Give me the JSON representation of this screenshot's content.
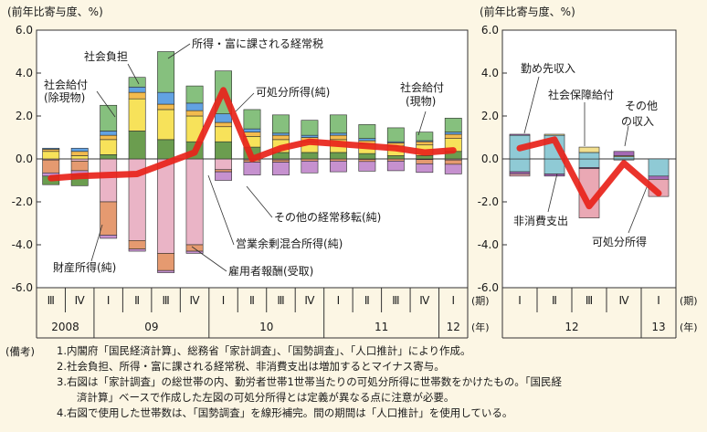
{
  "colors": {
    "page_bg": "#fcf6e4",
    "plot_bg": "#ffffff",
    "line": "#e8231a",
    "segments": {
      "employee_comp": "#eab4c6",
      "property_income": "#e59a70",
      "operating_surplus": "#c691cf",
      "other_transfers": "#6b9d4f",
      "social_benefits_nonkind": "#f7e25a",
      "social_benefits_kind": "#f3bb4e",
      "social_contributions": "#62a2e2",
      "income_tax": "#86c07e",
      "work_income": "#8fcad5",
      "social_security": "#f2df8e",
      "other_income": "#a469b4",
      "nonconsumption": "#eaa8b4"
    }
  },
  "chart_data": [
    {
      "type": "bar",
      "stacked": true,
      "unit_label": "(前年比寄与度、%)",
      "ylim": [
        -6.0,
        6.0
      ],
      "yticks": [
        "6.0",
        "4.0",
        "2.0",
        "0.0",
        "-2.0",
        "-4.0",
        "-6.0"
      ],
      "grid": false,
      "categories": [
        "Ⅲ",
        "Ⅳ",
        "Ⅰ",
        "Ⅱ",
        "Ⅲ",
        "Ⅳ",
        "Ⅰ",
        "Ⅱ",
        "Ⅲ",
        "Ⅳ",
        "Ⅰ",
        "Ⅱ",
        "Ⅲ",
        "Ⅳ",
        "Ⅰ"
      ],
      "period_label": "(期)",
      "years": [
        {
          "label": "2008",
          "start": 0,
          "end": 1
        },
        {
          "label": "09",
          "start": 2,
          "end": 5
        },
        {
          "label": "10",
          "start": 6,
          "end": 9
        },
        {
          "label": "11",
          "start": 10,
          "end": 13
        },
        {
          "label": "12",
          "start": 14,
          "end": 14
        }
      ],
      "year_label": "(年)",
      "segment_labels": {
        "employee_comp": "雇用者報酬(受取)",
        "property_income": "財産所得(純)",
        "operating_surplus": "営業余剰混合所得(純)",
        "other_transfers": "その他の経常移転(純)",
        "social_benefits_nonkind": "社会給付(除現物)",
        "social_benefits_kind": "社会給付(現物)",
        "social_contributions": "社会負担",
        "income_tax": "所得・富に課される経常税"
      },
      "series": [
        {
          "key": "employee_comp",
          "values": [
            -0.05,
            -0.1,
            -2.0,
            -3.8,
            -4.4,
            -4.0,
            -0.5,
            -0.05,
            -0.05,
            0.0,
            0.0,
            -0.02,
            0.0,
            -0.03,
            -0.05
          ]
        },
        {
          "key": "property_income",
          "values": [
            -0.6,
            -0.45,
            -1.55,
            -0.4,
            -0.8,
            -0.3,
            -0.1,
            -0.1,
            -0.1,
            -0.1,
            -0.1,
            -0.1,
            -0.1,
            -0.2,
            -0.2
          ]
        },
        {
          "key": "operating_surplus",
          "values": [
            -0.15,
            -0.2,
            -0.15,
            -0.1,
            -0.1,
            -0.1,
            -0.4,
            -0.6,
            -0.6,
            -0.55,
            -0.5,
            -0.45,
            -0.45,
            -0.4,
            -0.45
          ]
        },
        {
          "key": "other_transfers",
          "values": [
            -0.4,
            -0.5,
            0.2,
            1.3,
            0.9,
            0.8,
            0.8,
            0.55,
            0.3,
            0.3,
            0.3,
            0.25,
            0.15,
            0.15,
            0.35
          ]
        },
        {
          "key": "social_benefits_nonkind",
          "values": [
            0.35,
            0.15,
            0.7,
            1.5,
            1.4,
            1.2,
            0.7,
            0.5,
            0.6,
            0.5,
            0.6,
            0.45,
            0.45,
            0.5,
            0.6
          ]
        },
        {
          "key": "social_benefits_kind",
          "values": [
            0.1,
            0.2,
            0.2,
            0.3,
            0.25,
            0.25,
            0.2,
            0.2,
            0.2,
            0.2,
            0.2,
            0.15,
            0.15,
            0.15,
            0.2
          ]
        },
        {
          "key": "social_contributions",
          "values": [
            0.05,
            0.15,
            0.2,
            0.25,
            0.55,
            0.35,
            0.4,
            0.15,
            0.1,
            0.1,
            0.1,
            0.1,
            0.05,
            0.05,
            0.1
          ]
        },
        {
          "key": "income_tax",
          "values": [
            0.0,
            0.0,
            1.2,
            0.45,
            1.9,
            0.8,
            2.0,
            0.9,
            0.85,
            0.7,
            0.85,
            0.65,
            0.65,
            0.4,
            0.65
          ]
        }
      ],
      "line": {
        "name": "可処分所得(純)",
        "values": [
          -0.9,
          -0.8,
          -0.75,
          -0.7,
          -0.2,
          0.3,
          3.2,
          0.0,
          0.5,
          0.8,
          0.7,
          0.6,
          0.5,
          0.3,
          0.4
        ]
      }
    },
    {
      "type": "bar",
      "stacked": true,
      "unit_label": "(前年比寄与度、%)",
      "ylim": [
        -6.0,
        6.0
      ],
      "yticks": [
        "6.0",
        "4.0",
        "2.0",
        "0.0",
        "-2.0",
        "-4.0",
        "-6.0"
      ],
      "grid": false,
      "categories": [
        "Ⅰ",
        "Ⅱ",
        "Ⅲ",
        "Ⅳ",
        "Ⅰ"
      ],
      "period_label": "(期)",
      "years": [
        {
          "label": "12",
          "start": 0,
          "end": 3
        },
        {
          "label": "13",
          "start": 4,
          "end": 4
        }
      ],
      "year_label": "(年)",
      "segment_labels": {
        "work_income": "勤め先収入",
        "social_security": "社会保障給付",
        "other_income": "その他の収入",
        "nonconsumption": "非消費支出"
      },
      "series": [
        {
          "key": "work_income",
          "values": [
            -0.6,
            -0.7,
            -0.4,
            -0.05,
            -0.8
          ]
        },
        {
          "key": "other_income",
          "values": [
            -0.1,
            -0.1,
            -0.05,
            0.0,
            -0.15
          ]
        },
        {
          "key": "nonconsumption",
          "values": [
            -0.1,
            0.0,
            -2.3,
            0.0,
            -0.8
          ]
        },
        {
          "key": "work_income",
          "values": [
            1.1,
            1.1,
            0.3,
            0.1,
            0.0
          ]
        },
        {
          "key": "social_security",
          "values": [
            0.0,
            0.05,
            0.25,
            0.05,
            0.0
          ]
        },
        {
          "key": "other_income",
          "values": [
            0.05,
            0.0,
            0.0,
            0.2,
            0.0
          ]
        }
      ],
      "line": {
        "name": "可処分所得",
        "values": [
          0.5,
          0.9,
          -2.2,
          -0.2,
          -1.6
        ]
      }
    }
  ],
  "annotations": [
    {
      "text": "所得・富に課される経常税"
    },
    {
      "text": "社会負担"
    },
    {
      "text": "社会給付"
    },
    {
      "text": "(除現物)"
    },
    {
      "text": "可処分所得(純)"
    },
    {
      "text": "社会給付"
    },
    {
      "text": "(現物)"
    },
    {
      "text": "その他の経常移転(純)"
    },
    {
      "text": "営業余剰混合所得(純)"
    },
    {
      "text": "財産所得(純)"
    },
    {
      "text": "雇用者報酬(受取)"
    },
    {
      "text": "勤め先収入"
    },
    {
      "text": "社会保障給付"
    },
    {
      "text": "その他"
    },
    {
      "text": "の収入"
    },
    {
      "text": "非消費支出"
    },
    {
      "text": "可処分所得"
    }
  ],
  "notes": {
    "head": "(備考)",
    "items": [
      "1.内閣府「国民経済計算」、総務省「家計調査」、「国勢調査」、「人口推計」により作成。",
      "2.社会負担、所得・富に課される経常税、非消費支出は増加するとマイナス寄与。",
      "3.右図は「家計調査」の総世帯の内、勤労者世帯1世帯当たりの可処分所得に世帯数をかけたもの。「国民経",
      "済計算」ベースで作成した左図の可処分所得とは定義が異なる点に注意が必要。",
      "4.右図で使用した世帯数は、「国勢調査」を線形補完。間の期間は「人口推計」を使用している。"
    ]
  }
}
